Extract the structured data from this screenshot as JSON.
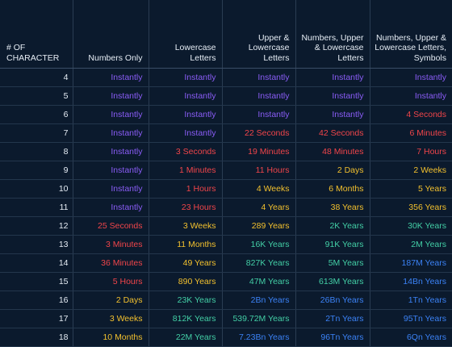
{
  "chart_data": {
    "type": "table",
    "title": "",
    "columns": [
      "# OF CHARACTER",
      "Numbers Only",
      "Lowercase Letters",
      "Upper & Lowercase Letters",
      "Numbers, Upper & Lowercase Letters",
      "Numbers, Upper & Lowercase Letters, Symbols"
    ],
    "rows": [
      [
        "4",
        "Instantly",
        "Instantly",
        "Instantly",
        "Instantly",
        "Instantly"
      ],
      [
        "5",
        "Instantly",
        "Instantly",
        "Instantly",
        "Instantly",
        "Instantly"
      ],
      [
        "6",
        "Instantly",
        "Instantly",
        "Instantly",
        "Instantly",
        "4 Seconds"
      ],
      [
        "7",
        "Instantly",
        "Instantly",
        "22 Seconds",
        "42 Seconds",
        "6 Minutes"
      ],
      [
        "8",
        "Instantly",
        "3 Seconds",
        "19 Minutes",
        "48 Minutes",
        "7 Hours"
      ],
      [
        "9",
        "Instantly",
        "1 Minutes",
        "11 Hours",
        "2 Days",
        "2 Weeks"
      ],
      [
        "10",
        "Instantly",
        "1 Hours",
        "4 Weeks",
        "6 Months",
        "5 Years"
      ],
      [
        "11",
        "Instantly",
        "23 Hours",
        "4 Years",
        "38 Years",
        "356 Years"
      ],
      [
        "12",
        "25 Seconds",
        "3 Weeks",
        "289 Years",
        "2K Years",
        "30K Years"
      ],
      [
        "13",
        "3 Minutes",
        "11 Months",
        "16K Years",
        "91K Years",
        "2M Years"
      ],
      [
        "14",
        "36 Minutes",
        "49 Years",
        "827K Years",
        "5M Years",
        "187M Years"
      ],
      [
        "15",
        "5 Hours",
        "890 Years",
        "47M Years",
        "613M Years",
        "14Bn Years"
      ],
      [
        "16",
        "2 Days",
        "23K Years",
        "2Bn Years",
        "26Bn Years",
        "1Tn Years"
      ],
      [
        "17",
        "3 Weeks",
        "812K Years",
        "539.72M Years",
        "2Tn Years",
        "95Tn Years"
      ],
      [
        "18",
        "10 Months",
        "22M Years",
        "7.23Bn Years",
        "96Tn Years",
        "6Qn Years"
      ]
    ],
    "colors": {
      "purple": "#8a5cf6",
      "red": "#f0454a",
      "yellow": "#f2c02e",
      "green": "#43cfa6",
      "blue": "#3b82f6",
      "header_text": "#e6edf5",
      "background": "#0b1a2d"
    },
    "cell_colors": [
      [
        "purple",
        "purple",
        "purple",
        "purple",
        "purple"
      ],
      [
        "purple",
        "purple",
        "purple",
        "purple",
        "purple"
      ],
      [
        "purple",
        "purple",
        "purple",
        "purple",
        "red"
      ],
      [
        "purple",
        "purple",
        "red",
        "red",
        "red"
      ],
      [
        "purple",
        "red",
        "red",
        "red",
        "red"
      ],
      [
        "purple",
        "red",
        "red",
        "yellow",
        "yellow"
      ],
      [
        "purple",
        "red",
        "yellow",
        "yellow",
        "yellow"
      ],
      [
        "purple",
        "red",
        "yellow",
        "yellow",
        "yellow"
      ],
      [
        "red",
        "yellow",
        "yellow",
        "green",
        "green"
      ],
      [
        "red",
        "yellow",
        "green",
        "green",
        "green"
      ],
      [
        "red",
        "yellow",
        "green",
        "green",
        "blue"
      ],
      [
        "red",
        "yellow",
        "green",
        "green",
        "blue"
      ],
      [
        "yellow",
        "green",
        "blue",
        "blue",
        "blue"
      ],
      [
        "yellow",
        "green",
        "green",
        "blue",
        "blue"
      ],
      [
        "yellow",
        "green",
        "blue",
        "blue",
        "blue"
      ]
    ]
  }
}
